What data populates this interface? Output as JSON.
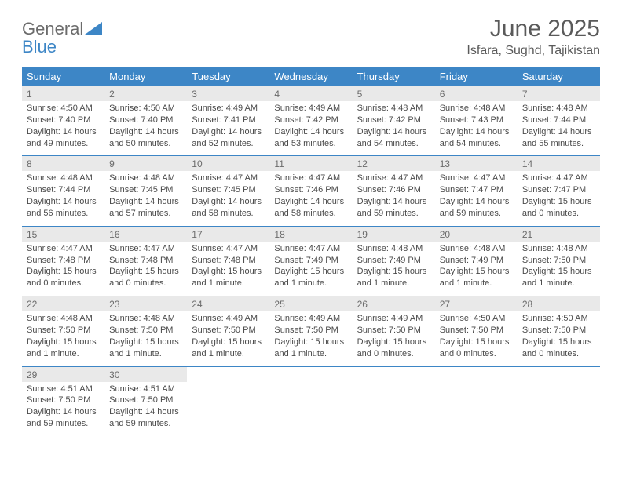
{
  "logo": {
    "general": "General",
    "blue": "Blue"
  },
  "title": "June 2025",
  "location": "Isfara, Sughd, Tajikistan",
  "colors": {
    "header_bg": "#3d86c6",
    "header_text": "#ffffff",
    "daynum_bg": "#e9e9e9",
    "text": "#4a4a4a",
    "title_color": "#5a5a5a",
    "border": "#3d86c6"
  },
  "day_names": [
    "Sunday",
    "Monday",
    "Tuesday",
    "Wednesday",
    "Thursday",
    "Friday",
    "Saturday"
  ],
  "weeks": [
    [
      {
        "n": "1",
        "sr": "Sunrise: 4:50 AM",
        "ss": "Sunset: 7:40 PM",
        "d1": "Daylight: 14 hours",
        "d2": "and 49 minutes."
      },
      {
        "n": "2",
        "sr": "Sunrise: 4:50 AM",
        "ss": "Sunset: 7:40 PM",
        "d1": "Daylight: 14 hours",
        "d2": "and 50 minutes."
      },
      {
        "n": "3",
        "sr": "Sunrise: 4:49 AM",
        "ss": "Sunset: 7:41 PM",
        "d1": "Daylight: 14 hours",
        "d2": "and 52 minutes."
      },
      {
        "n": "4",
        "sr": "Sunrise: 4:49 AM",
        "ss": "Sunset: 7:42 PM",
        "d1": "Daylight: 14 hours",
        "d2": "and 53 minutes."
      },
      {
        "n": "5",
        "sr": "Sunrise: 4:48 AM",
        "ss": "Sunset: 7:42 PM",
        "d1": "Daylight: 14 hours",
        "d2": "and 54 minutes."
      },
      {
        "n": "6",
        "sr": "Sunrise: 4:48 AM",
        "ss": "Sunset: 7:43 PM",
        "d1": "Daylight: 14 hours",
        "d2": "and 54 minutes."
      },
      {
        "n": "7",
        "sr": "Sunrise: 4:48 AM",
        "ss": "Sunset: 7:44 PM",
        "d1": "Daylight: 14 hours",
        "d2": "and 55 minutes."
      }
    ],
    [
      {
        "n": "8",
        "sr": "Sunrise: 4:48 AM",
        "ss": "Sunset: 7:44 PM",
        "d1": "Daylight: 14 hours",
        "d2": "and 56 minutes."
      },
      {
        "n": "9",
        "sr": "Sunrise: 4:48 AM",
        "ss": "Sunset: 7:45 PM",
        "d1": "Daylight: 14 hours",
        "d2": "and 57 minutes."
      },
      {
        "n": "10",
        "sr": "Sunrise: 4:47 AM",
        "ss": "Sunset: 7:45 PM",
        "d1": "Daylight: 14 hours",
        "d2": "and 58 minutes."
      },
      {
        "n": "11",
        "sr": "Sunrise: 4:47 AM",
        "ss": "Sunset: 7:46 PM",
        "d1": "Daylight: 14 hours",
        "d2": "and 58 minutes."
      },
      {
        "n": "12",
        "sr": "Sunrise: 4:47 AM",
        "ss": "Sunset: 7:46 PM",
        "d1": "Daylight: 14 hours",
        "d2": "and 59 minutes."
      },
      {
        "n": "13",
        "sr": "Sunrise: 4:47 AM",
        "ss": "Sunset: 7:47 PM",
        "d1": "Daylight: 14 hours",
        "d2": "and 59 minutes."
      },
      {
        "n": "14",
        "sr": "Sunrise: 4:47 AM",
        "ss": "Sunset: 7:47 PM",
        "d1": "Daylight: 15 hours",
        "d2": "and 0 minutes."
      }
    ],
    [
      {
        "n": "15",
        "sr": "Sunrise: 4:47 AM",
        "ss": "Sunset: 7:48 PM",
        "d1": "Daylight: 15 hours",
        "d2": "and 0 minutes."
      },
      {
        "n": "16",
        "sr": "Sunrise: 4:47 AM",
        "ss": "Sunset: 7:48 PM",
        "d1": "Daylight: 15 hours",
        "d2": "and 0 minutes."
      },
      {
        "n": "17",
        "sr": "Sunrise: 4:47 AM",
        "ss": "Sunset: 7:48 PM",
        "d1": "Daylight: 15 hours",
        "d2": "and 1 minute."
      },
      {
        "n": "18",
        "sr": "Sunrise: 4:47 AM",
        "ss": "Sunset: 7:49 PM",
        "d1": "Daylight: 15 hours",
        "d2": "and 1 minute."
      },
      {
        "n": "19",
        "sr": "Sunrise: 4:48 AM",
        "ss": "Sunset: 7:49 PM",
        "d1": "Daylight: 15 hours",
        "d2": "and 1 minute."
      },
      {
        "n": "20",
        "sr": "Sunrise: 4:48 AM",
        "ss": "Sunset: 7:49 PM",
        "d1": "Daylight: 15 hours",
        "d2": "and 1 minute."
      },
      {
        "n": "21",
        "sr": "Sunrise: 4:48 AM",
        "ss": "Sunset: 7:50 PM",
        "d1": "Daylight: 15 hours",
        "d2": "and 1 minute."
      }
    ],
    [
      {
        "n": "22",
        "sr": "Sunrise: 4:48 AM",
        "ss": "Sunset: 7:50 PM",
        "d1": "Daylight: 15 hours",
        "d2": "and 1 minute."
      },
      {
        "n": "23",
        "sr": "Sunrise: 4:48 AM",
        "ss": "Sunset: 7:50 PM",
        "d1": "Daylight: 15 hours",
        "d2": "and 1 minute."
      },
      {
        "n": "24",
        "sr": "Sunrise: 4:49 AM",
        "ss": "Sunset: 7:50 PM",
        "d1": "Daylight: 15 hours",
        "d2": "and 1 minute."
      },
      {
        "n": "25",
        "sr": "Sunrise: 4:49 AM",
        "ss": "Sunset: 7:50 PM",
        "d1": "Daylight: 15 hours",
        "d2": "and 1 minute."
      },
      {
        "n": "26",
        "sr": "Sunrise: 4:49 AM",
        "ss": "Sunset: 7:50 PM",
        "d1": "Daylight: 15 hours",
        "d2": "and 0 minutes."
      },
      {
        "n": "27",
        "sr": "Sunrise: 4:50 AM",
        "ss": "Sunset: 7:50 PM",
        "d1": "Daylight: 15 hours",
        "d2": "and 0 minutes."
      },
      {
        "n": "28",
        "sr": "Sunrise: 4:50 AM",
        "ss": "Sunset: 7:50 PM",
        "d1": "Daylight: 15 hours",
        "d2": "and 0 minutes."
      }
    ],
    [
      {
        "n": "29",
        "sr": "Sunrise: 4:51 AM",
        "ss": "Sunset: 7:50 PM",
        "d1": "Daylight: 14 hours",
        "d2": "and 59 minutes."
      },
      {
        "n": "30",
        "sr": "Sunrise: 4:51 AM",
        "ss": "Sunset: 7:50 PM",
        "d1": "Daylight: 14 hours",
        "d2": "and 59 minutes."
      },
      null,
      null,
      null,
      null,
      null
    ]
  ]
}
